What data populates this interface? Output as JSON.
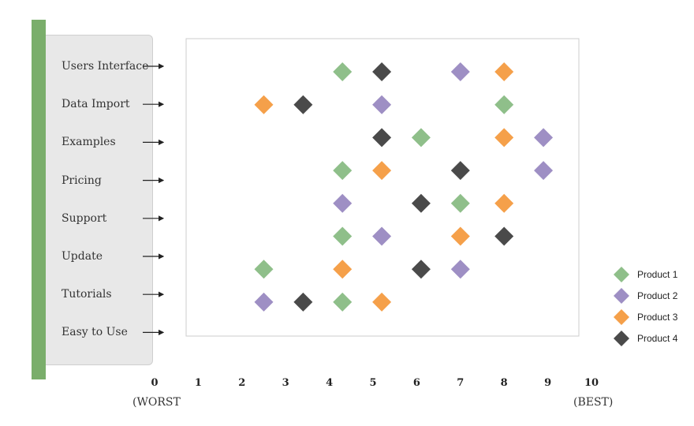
{
  "chart_data": {
    "type": "scatter",
    "categories": [
      "Users Interface",
      "Data Import",
      "Examples",
      "Pricing",
      "Support",
      "Update",
      "Tutorials",
      "Easy to Use"
    ],
    "x_ticks": [
      "0",
      "1",
      "2",
      "3",
      "4",
      "5",
      "6",
      "7",
      "8",
      "9",
      "10"
    ],
    "xlim": [
      0,
      10
    ],
    "x_min_label": "(WORST",
    "x_max_label": "(BEST)",
    "legend_position": "right",
    "series": [
      {
        "name": "Product 1",
        "color": "#8fbf8a",
        "points": [
          {
            "x": 4.3,
            "y": 0
          },
          {
            "x": 8.0,
            "y": 1
          },
          {
            "x": 6.1,
            "y": 2
          },
          {
            "x": 4.3,
            "y": 3
          },
          {
            "x": 7.0,
            "y": 4
          },
          {
            "x": 4.3,
            "y": 5
          },
          {
            "x": 2.5,
            "y": 6
          },
          {
            "x": 4.3,
            "y": 7
          }
        ]
      },
      {
        "name": "Product 2",
        "color": "#9e8fc4",
        "points": [
          {
            "x": 7.0,
            "y": 0
          },
          {
            "x": 5.2,
            "y": 1
          },
          {
            "x": 8.9,
            "y": 2
          },
          {
            "x": 8.9,
            "y": 3
          },
          {
            "x": 4.3,
            "y": 4
          },
          {
            "x": 5.2,
            "y": 5
          },
          {
            "x": 7.0,
            "y": 6
          },
          {
            "x": 2.5,
            "y": 7
          }
        ]
      },
      {
        "name": "Product 3",
        "color": "#f5a04a",
        "points": [
          {
            "x": 8.0,
            "y": 0
          },
          {
            "x": 2.5,
            "y": 1
          },
          {
            "x": 8.0,
            "y": 2
          },
          {
            "x": 5.2,
            "y": 3
          },
          {
            "x": 8.0,
            "y": 4
          },
          {
            "x": 7.0,
            "y": 5
          },
          {
            "x": 4.3,
            "y": 6
          },
          {
            "x": 5.2,
            "y": 7
          }
        ]
      },
      {
        "name": "Product 4",
        "color": "#4a4a4a",
        "points": [
          {
            "x": 5.2,
            "y": 0
          },
          {
            "x": 3.4,
            "y": 1
          },
          {
            "x": 5.2,
            "y": 2
          },
          {
            "x": 7.0,
            "y": 3
          },
          {
            "x": 6.1,
            "y": 4
          },
          {
            "x": 8.0,
            "y": 5
          },
          {
            "x": 6.1,
            "y": 6
          },
          {
            "x": 3.4,
            "y": 7
          }
        ]
      }
    ]
  }
}
